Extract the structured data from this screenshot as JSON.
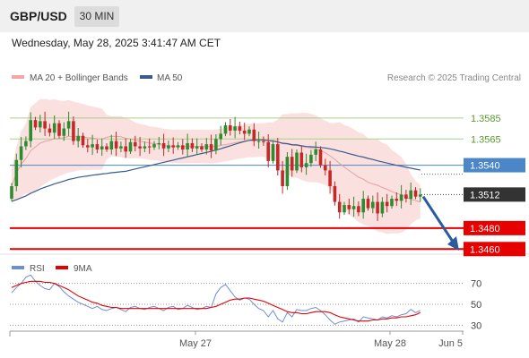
{
  "header": {
    "pair": "GBP/USD",
    "timeframe": "30 MIN",
    "timestamp": "Wednesday, May 28, 2025 3:41:47 AM CET",
    "attribution": "Research © 2025 Trading Central"
  },
  "colors": {
    "header_bg": "#f0f0f0",
    "bollinger": "#f4a6a6",
    "ma20": "#e8a0a0",
    "ma50": "#3a5a8c",
    "resistance": "#a6d08a",
    "resistance_text": "#5a9a30",
    "pivot": "#4a86c8",
    "support": "#e60000",
    "candle_up": "#2e8b2e",
    "candle_down": "#c62828",
    "rsi": "#6b8fd6",
    "rsi_ma": "#e60000",
    "price_label": "#333333",
    "arrow": "#2a5aa0"
  },
  "chart_data": [
    {
      "type": "candlestick",
      "legend": [
        {
          "name": "MA 20 + Bollinger Bands",
          "color": "#f4a6a6"
        },
        {
          "name": "MA 50",
          "color": "#3a5a8c"
        }
      ],
      "legend_position": "top-left",
      "y_range": [
        1.345,
        1.3625
      ],
      "levels": [
        {
          "label": "1.3585",
          "value": 1.3585,
          "kind": "resistance"
        },
        {
          "label": "1.3565",
          "value": 1.3565,
          "kind": "resistance"
        },
        {
          "label": "1.3540",
          "value": 1.354,
          "kind": "pivot"
        },
        {
          "label": "1.3512",
          "value": 1.3512,
          "kind": "last_price"
        },
        {
          "label": "1.3480",
          "value": 1.348,
          "kind": "support"
        },
        {
          "label": "1.3460",
          "value": 1.346,
          "kind": "support"
        }
      ],
      "closes": [
        1.352,
        1.3545,
        1.3558,
        1.3563,
        1.3583,
        1.3576,
        1.3582,
        1.3575,
        1.3571,
        1.358,
        1.3568,
        1.3575,
        1.3582,
        1.3563,
        1.3568,
        1.3559,
        1.3557,
        1.356,
        1.3555,
        1.3558,
        1.3555,
        1.3563,
        1.3556,
        1.3558,
        1.3553,
        1.3562,
        1.3558,
        1.3556,
        1.3558,
        1.3557,
        1.356,
        1.3561,
        1.3556,
        1.3559,
        1.3557,
        1.3559,
        1.3555,
        1.3561,
        1.3556,
        1.3558,
        1.3555,
        1.356,
        1.3554,
        1.3565,
        1.357,
        1.3578,
        1.3573,
        1.3577,
        1.3573,
        1.357,
        1.3574,
        1.3563,
        1.3563,
        1.3562,
        1.3544,
        1.356,
        1.3535,
        1.352,
        1.3548,
        1.3535,
        1.3552,
        1.3538,
        1.3542,
        1.355,
        1.3555,
        1.354,
        1.3535,
        1.352,
        1.3505,
        1.3495,
        1.3502,
        1.3498,
        1.3501,
        1.3495,
        1.3508,
        1.3499,
        1.3505,
        1.3494,
        1.3505,
        1.3501,
        1.3508,
        1.3506,
        1.3512,
        1.3508,
        1.3516,
        1.351,
        1.3512
      ],
      "x_labels": [
        "May 27",
        "May 28",
        "Jun 5"
      ]
    },
    {
      "type": "line",
      "legend": [
        {
          "name": "RSI",
          "color": "#6b8fd6"
        },
        {
          "name": "9MA",
          "color": "#e60000"
        }
      ],
      "legend_position": "top-left",
      "y_range": [
        20,
        80
      ],
      "ticks": [
        "70",
        "50",
        "30"
      ],
      "rsi": [
        61,
        66,
        70,
        76,
        78,
        72,
        68,
        65,
        64,
        70,
        67,
        62,
        58,
        55,
        52,
        50,
        48,
        46,
        48,
        45,
        44,
        46,
        47,
        45,
        43,
        47,
        48,
        46,
        45,
        47,
        48,
        46,
        44,
        47,
        48,
        45,
        46,
        49,
        47,
        45,
        46,
        48,
        47,
        60,
        66,
        69,
        63,
        57,
        54,
        56,
        55,
        50,
        46,
        44,
        38,
        44,
        36,
        33,
        42,
        38,
        45,
        44,
        44,
        46,
        47,
        44,
        40,
        35,
        31,
        33,
        34,
        35,
        36,
        33,
        38,
        37,
        36,
        35,
        38,
        37,
        39,
        38,
        40,
        41,
        45,
        42,
        44
      ],
      "rsi_ma": [
        66,
        68,
        70,
        71,
        72,
        72,
        72,
        71,
        71,
        70,
        68,
        66,
        64,
        61,
        58,
        56,
        54,
        52,
        51,
        49,
        48,
        47,
        47,
        46,
        46,
        46,
        46,
        46,
        46,
        46,
        46,
        46,
        46,
        46,
        46,
        46,
        46,
        46,
        46,
        46,
        46,
        46,
        47,
        48,
        50,
        52,
        54,
        55,
        55,
        56,
        56,
        55,
        54,
        53,
        51,
        49,
        47,
        45,
        43,
        42,
        42,
        41,
        41,
        42,
        43,
        43,
        43,
        42,
        40,
        38,
        37,
        36,
        35,
        34,
        34,
        34,
        35,
        35,
        36,
        36,
        37,
        37,
        38,
        38,
        39,
        40,
        42
      ]
    }
  ]
}
